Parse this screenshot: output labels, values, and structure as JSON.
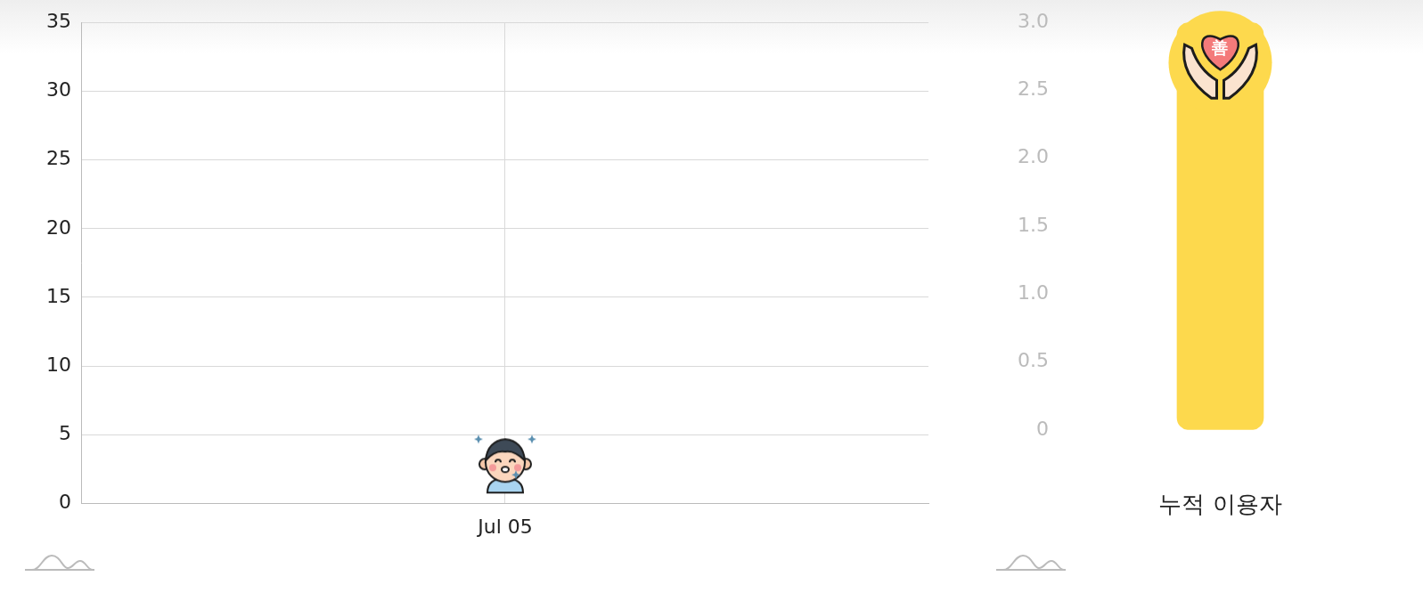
{
  "chart_data": [
    {
      "type": "line",
      "categories": [
        "Jul 05"
      ],
      "values": [
        3
      ],
      "ylim": [
        0,
        35
      ],
      "yticks": [
        0,
        5,
        10,
        15,
        20,
        25,
        30,
        35
      ],
      "grid": true,
      "marker": "icon"
    },
    {
      "type": "bar",
      "categories": [
        "누적 이용자"
      ],
      "values": [
        3
      ],
      "color": "#fdd94d",
      "ylim": [
        0,
        3
      ],
      "yticks": [
        0,
        0.5,
        {
          "value": 1,
          "label": "1.0"
        },
        1.5,
        {
          "value": 2,
          "label": "2.0"
        },
        2.5,
        {
          "value": 3,
          "label": "3.0"
        }
      ],
      "grid": false,
      "marker": "icon",
      "annotations": [
        "善"
      ]
    }
  ]
}
